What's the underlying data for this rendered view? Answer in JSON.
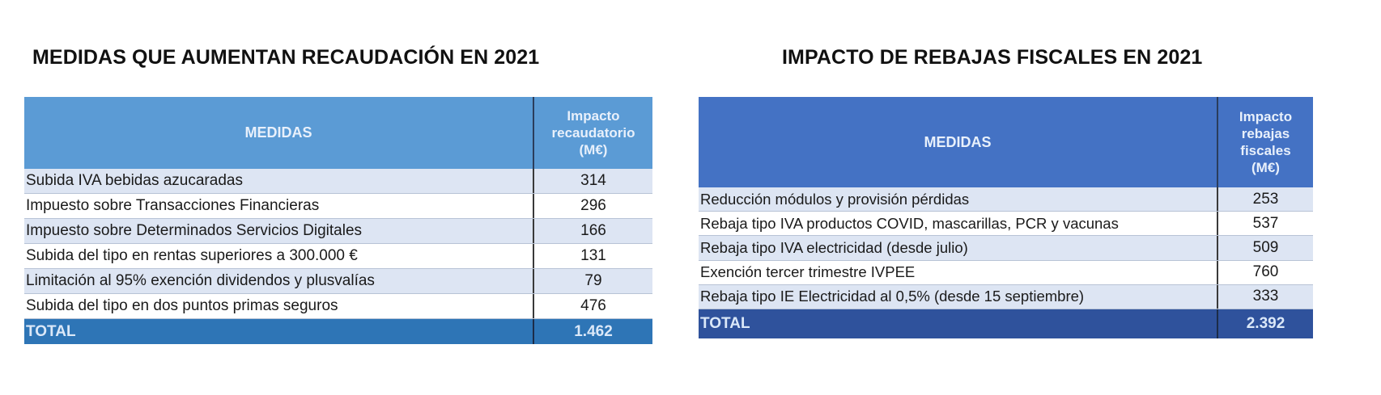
{
  "left": {
    "title": "MEDIDAS QUE AUMENTAN RECAUDACIÓN EN 2021",
    "header": {
      "col1": "MEDIDAS",
      "col2_lines": [
        "Impacto",
        "recaudatorio",
        "(M€)"
      ]
    },
    "rows": [
      {
        "medida": "Subida IVA bebidas azucaradas",
        "valor": "314"
      },
      {
        "medida": "Impuesto sobre Transacciones Financieras",
        "valor": "296"
      },
      {
        "medida": "Impuesto sobre Determinados Servicios Digitales",
        "valor": "166"
      },
      {
        "medida": "Subida del tipo en rentas superiores a 300.000 €",
        "valor": "131"
      },
      {
        "medida": "Limitación al 95% exención dividendos y plusvalías",
        "valor": "79"
      },
      {
        "medida": "Subida del tipo en dos puntos primas seguros",
        "valor": "476"
      }
    ],
    "total": {
      "label": "TOTAL",
      "valor": "1.462"
    },
    "colors": {
      "header": "#5b9bd5",
      "total": "#2e75b6",
      "row_alt": "#dde5f3"
    }
  },
  "right": {
    "title": "IMPACTO DE REBAJAS FISCALES EN 2021",
    "header": {
      "col1": "MEDIDAS",
      "col2_lines": [
        "Impacto",
        "rebajas",
        "fiscales",
        "(M€)"
      ]
    },
    "rows": [
      {
        "medida": "Reducción módulos y provisión pérdidas",
        "valor": "253"
      },
      {
        "medida": "Rebaja tipo IVA productos COVID, mascarillas, PCR y vacunas",
        "valor": "537"
      },
      {
        "medida": "Rebaja tipo IVA electricidad (desde julio)",
        "valor": "509"
      },
      {
        "medida": "Exención tercer trimestre IVPEE",
        "valor": "760"
      },
      {
        "medida": "Rebaja tipo IE Electricidad al 0,5% (desde 15 septiembre)",
        "valor": "333"
      }
    ],
    "total": {
      "label": "TOTAL",
      "valor": "2.392"
    },
    "colors": {
      "header": "#4472c4",
      "total": "#2f529c",
      "row_alt": "#dde5f3"
    }
  }
}
